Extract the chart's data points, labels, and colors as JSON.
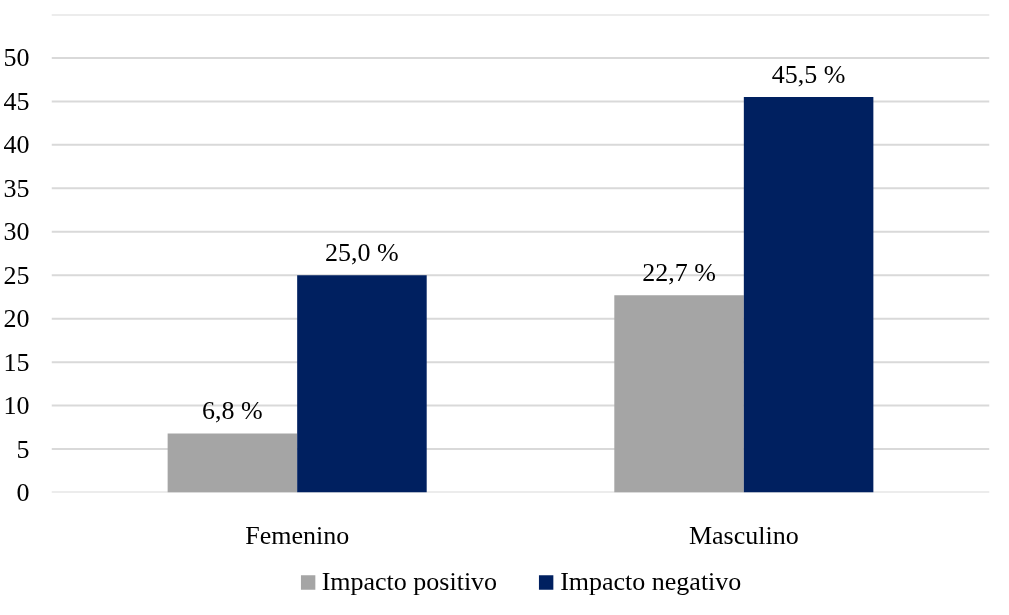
{
  "chart_data": {
    "type": "bar",
    "categories": [
      "Femenino",
      "Masculino"
    ],
    "series": [
      {
        "name": "Impacto positivo",
        "color": "#a5a5a5",
        "values": [
          6.8,
          22.7
        ],
        "value_labels": [
          "6,8 %",
          "22,7 %"
        ]
      },
      {
        "name": "Impacto negativo",
        "color": "#002060",
        "values": [
          25.0,
          45.5
        ],
        "value_labels": [
          "25,0 %",
          "45,5 %"
        ]
      }
    ],
    "ylim": [
      0,
      55
    ],
    "yticks": [
      0,
      5,
      10,
      15,
      20,
      25,
      30,
      35,
      40,
      45,
      50,
      {
        "value": 55,
        "label": null
      }
    ],
    "grid": "y",
    "legend": "bottom"
  }
}
